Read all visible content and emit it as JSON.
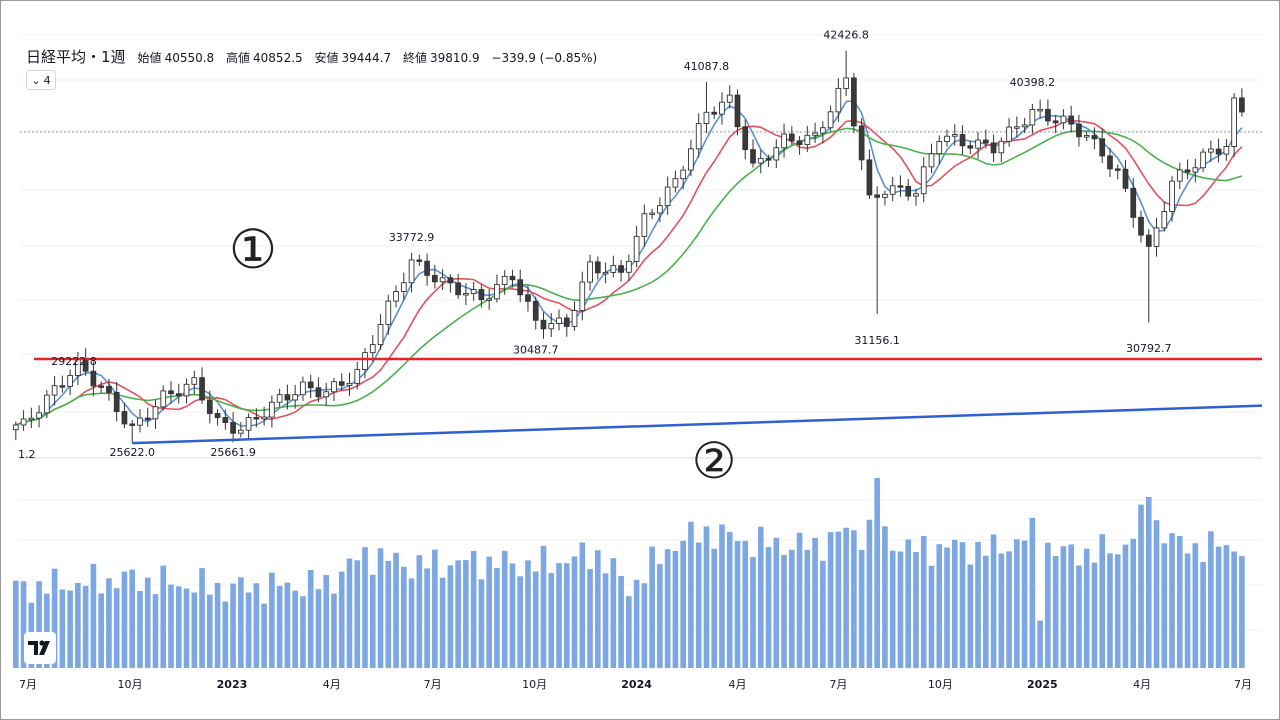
{
  "header": {
    "title": "日経平均・1週",
    "open_label": "始値",
    "open": "40550.8",
    "high_label": "高値",
    "high": "40852.5",
    "low_label": "安値",
    "low": "39444.7",
    "close_label": "終値",
    "close": "39810.9",
    "change": "−339.9 (−0.85%)",
    "collapse": "4"
  },
  "annotations": {
    "circle1": "①",
    "circle2": "②",
    "price_labels": [
      {
        "text": "33772.9",
        "date": "2023-06-12"
      },
      {
        "text": "41087.8",
        "date": "2024-03-04"
      },
      {
        "text": "42426.8",
        "date": "2024-07-08"
      },
      {
        "text": "40398.2",
        "date": "2024-12-23"
      },
      {
        "text": "29222.8",
        "date": "2022-08-15"
      },
      {
        "text": "30487.7",
        "date": "2023-10-02"
      },
      {
        "text": "31156.1",
        "date": "2024-08-05"
      },
      {
        "text": "30792.7",
        "date": "2025-04-07"
      },
      {
        "text": "25622.0",
        "date": "2022-10-03"
      },
      {
        "text": "25661.9",
        "date": "2023-01-02"
      }
    ],
    "clipped_label": "1.2"
  },
  "colors": {
    "support_line": "#e8212e",
    "trend_line": "#2f5fd0",
    "ma_short": "#5b8fd6",
    "ma_mid": "#e0535c",
    "ma_long": "#4caf50",
    "candle_up": "#ffffff",
    "candle_down": "#3a3a3a",
    "volume": "#7da7e3"
  },
  "chart_data": {
    "type": "candlestick",
    "interval": "weekly",
    "ylim": [
      24900,
      44600
    ],
    "x_ticks": [
      {
        "label": "7月",
        "date": "2022-07-01"
      },
      {
        "label": "10月",
        "date": "2022-10-01"
      },
      {
        "label": "2023",
        "date": "2023-01-01"
      },
      {
        "label": "4月",
        "date": "2023-04-01"
      },
      {
        "label": "7月",
        "date": "2023-07-01"
      },
      {
        "label": "10月",
        "date": "2023-10-01"
      },
      {
        "label": "2024",
        "date": "2024-01-01"
      },
      {
        "label": "4月",
        "date": "2024-04-01"
      },
      {
        "label": "7月",
        "date": "2024-07-01"
      },
      {
        "label": "10月",
        "date": "2024-10-01"
      },
      {
        "label": "2025",
        "date": "2025-01-01"
      },
      {
        "label": "4月",
        "date": "2025-04-01"
      },
      {
        "label": "7月",
        "date": "2025-07-01"
      }
    ],
    "support_level": 29222.8,
    "trendline": [
      {
        "date": "2022-10-03",
        "value": 25622.0
      },
      {
        "date": "2025-07-01",
        "value": 27200
      }
    ],
    "price_anchors": [
      [
        "2022-06-27",
        26400
      ],
      [
        "2022-07-25",
        27900
      ],
      [
        "2022-08-15",
        29000
      ],
      [
        "2022-09-05",
        28000
      ],
      [
        "2022-10-03",
        26200
      ],
      [
        "2022-10-31",
        27600
      ],
      [
        "2022-11-28",
        28200
      ],
      [
        "2022-12-19",
        26500
      ],
      [
        "2023-01-09",
        26200
      ],
      [
        "2023-02-13",
        27500
      ],
      [
        "2023-03-06",
        28000
      ],
      [
        "2023-03-27",
        27800
      ],
      [
        "2023-04-24",
        28600
      ],
      [
        "2023-05-15",
        30800
      ],
      [
        "2023-06-12",
        33400
      ],
      [
        "2023-07-10",
        32500
      ],
      [
        "2023-08-14",
        31800
      ],
      [
        "2023-09-11",
        32800
      ],
      [
        "2023-10-02",
        30800
      ],
      [
        "2023-10-30",
        30700
      ],
      [
        "2023-11-20",
        33200
      ],
      [
        "2023-12-18",
        32900
      ],
      [
        "2024-01-08",
        35200
      ],
      [
        "2024-02-05",
        36800
      ],
      [
        "2024-03-04",
        39800
      ],
      [
        "2024-03-25",
        40300
      ],
      [
        "2024-04-15",
        37400
      ],
      [
        "2024-05-13",
        38600
      ],
      [
        "2024-06-10",
        38700
      ],
      [
        "2024-07-08",
        41200
      ],
      [
        "2024-07-29",
        36000
      ],
      [
        "2024-08-12",
        36500
      ],
      [
        "2024-09-09",
        36400
      ],
      [
        "2024-09-30",
        38800
      ],
      [
        "2024-10-21",
        38500
      ],
      [
        "2024-11-18",
        38300
      ],
      [
        "2024-12-23",
        39800
      ],
      [
        "2025-01-20",
        39400
      ],
      [
        "2025-02-10",
        38800
      ],
      [
        "2025-03-10",
        37200
      ],
      [
        "2025-04-07",
        33800
      ],
      [
        "2025-04-28",
        36800
      ],
      [
        "2025-05-26",
        37900
      ],
      [
        "2025-06-16",
        38400
      ],
      [
        "2025-06-23",
        40150
      ],
      [
        "2025-06-30",
        39810
      ]
    ],
    "volume_anchors": [
      [
        "2022-06-27",
        42
      ],
      [
        "2022-09-26",
        47
      ],
      [
        "2022-12-26",
        42
      ],
      [
        "2023-03-27",
        44
      ],
      [
        "2023-05-01",
        60
      ],
      [
        "2023-06-12",
        54
      ],
      [
        "2023-08-14",
        56
      ],
      [
        "2023-10-02",
        54
      ],
      [
        "2023-11-27",
        60
      ],
      [
        "2023-12-25",
        42
      ],
      [
        "2024-02-05",
        66
      ],
      [
        "2024-03-04",
        72
      ],
      [
        "2024-04-15",
        66
      ],
      [
        "2024-06-10",
        64
      ],
      [
        "2024-07-08",
        72
      ],
      [
        "2024-08-05",
        70
      ],
      [
        "2024-09-09",
        62
      ],
      [
        "2024-10-07",
        64
      ],
      [
        "2024-11-18",
        62
      ],
      [
        "2024-12-23",
        70
      ],
      [
        "2025-01-20",
        60
      ],
      [
        "2025-03-10",
        62
      ],
      [
        "2025-04-07",
        80
      ],
      [
        "2025-05-05",
        64
      ],
      [
        "2025-06-30",
        64
      ]
    ],
    "volume_spikes": [
      [
        "2024-08-05",
        100
      ],
      [
        "2025-04-07",
        90
      ],
      [
        "2024-07-29",
        78
      ],
      [
        "2025-03-31",
        86
      ]
    ],
    "volume_dip": [
      [
        "2024-12-30",
        25
      ]
    ]
  }
}
